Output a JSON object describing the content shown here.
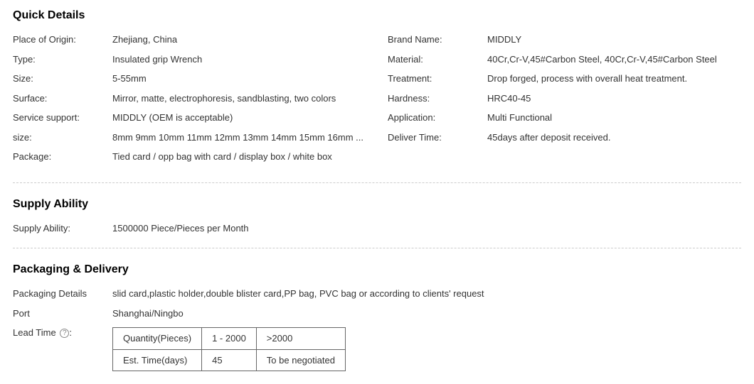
{
  "quick_details": {
    "title": "Quick Details",
    "left": [
      {
        "label": "Place of Origin:",
        "value": "Zhejiang, China"
      },
      {
        "label": "Type:",
        "value": "Insulated grip Wrench"
      },
      {
        "label": "Size:",
        "value": "5-55mm"
      },
      {
        "label": "Surface:",
        "value": "Mirror, matte, electrophoresis, sandblasting, two colors"
      },
      {
        "label": "Service support:",
        "value": "MIDDLY (OEM is acceptable)"
      },
      {
        "label": "size:",
        "value": "8mm 9mm 10mm 11mm 12mm 13mm 14mm 15mm 16mm ..."
      },
      {
        "label": "Package:",
        "value": "Tied card / opp bag with card / display box / white box"
      }
    ],
    "right": [
      {
        "label": "Brand Name:",
        "value": "MIDDLY"
      },
      {
        "label": "Material:",
        "value": "40Cr,Cr-V,45#Carbon Steel, 40Cr,Cr-V,45#Carbon Steel"
      },
      {
        "label": "Treatment:",
        "value": "Drop forged, process with overall heat treatment."
      },
      {
        "label": "Hardness:",
        "value": "HRC40-45"
      },
      {
        "label": "Application:",
        "value": "Multi Functional"
      },
      {
        "label": "Deliver Time:",
        "value": "45days after deposit received."
      }
    ]
  },
  "supply_ability": {
    "title": "Supply Ability",
    "label": "Supply Ability:",
    "value": "1500000 Piece/Pieces per Month"
  },
  "packaging_delivery": {
    "title": "Packaging & Delivery",
    "packaging_label": "Packaging Details",
    "packaging_value": "slid card,plastic holder,double blister card,PP bag, PVC bag or according to clients' request",
    "port_label": "Port",
    "port_value": "Shanghai/Ningbo",
    "lead_label": "Lead Time",
    "lead_icon": "?",
    "lead_colon": ":",
    "lead_table": {
      "r1c1": "Quantity(Pieces)",
      "r1c2": "1 - 2000",
      "r1c3": ">2000",
      "r2c1": "Est. Time(days)",
      "r2c2": "45",
      "r2c3": "To be negotiated"
    }
  }
}
